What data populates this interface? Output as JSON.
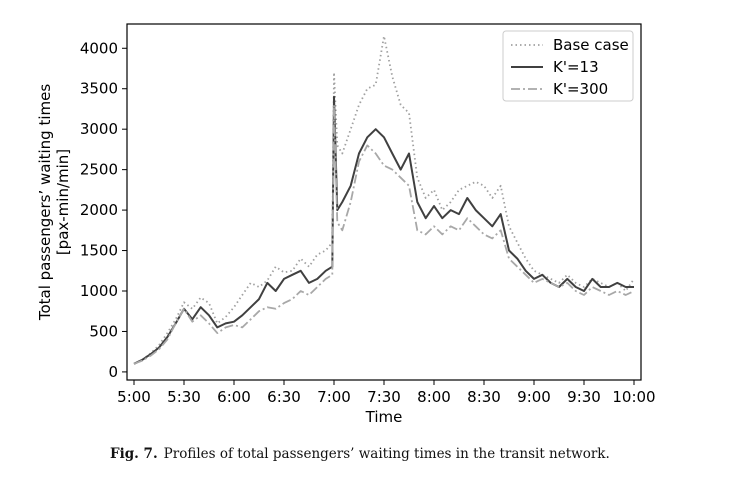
{
  "caption": {
    "label": "Fig. 7.",
    "text": "Profiles of total passengers’ waiting times in the transit network."
  },
  "chart_data": {
    "type": "line",
    "title": "",
    "xlabel": "Time",
    "ylabel": "Total passengers’ waiting times\n[pax-min/min]",
    "ylabel_lines": [
      "Total passengers’ waiting times",
      "[pax-min/min]"
    ],
    "x_unit": "minutes after 5:00",
    "xlim": [
      "5:00",
      "10:00"
    ],
    "ylim": [
      -100,
      4300
    ],
    "x_ticks": [
      "5:00",
      "5:30",
      "6:00",
      "6:30",
      "7:00",
      "7:30",
      "8:00",
      "8:30",
      "9:00",
      "9:30",
      "10:00"
    ],
    "y_ticks": [
      0,
      500,
      1000,
      1500,
      2000,
      2500,
      3000,
      3500,
      4000
    ],
    "legend_position": "top-right",
    "grid": false,
    "x": [
      "5:00",
      "5:05",
      "5:10",
      "5:15",
      "5:20",
      "5:25",
      "5:30",
      "5:35",
      "5:40",
      "5:45",
      "5:50",
      "5:55",
      "6:00",
      "6:05",
      "6:10",
      "6:15",
      "6:20",
      "6:25",
      "6:30",
      "6:35",
      "6:40",
      "6:45",
      "6:50",
      "6:55",
      "6:59",
      "7:00",
      "7:02",
      "7:05",
      "7:10",
      "7:15",
      "7:20",
      "7:25",
      "7:30",
      "7:35",
      "7:40",
      "7:45",
      "7:50",
      "7:55",
      "8:00",
      "8:05",
      "8:10",
      "8:15",
      "8:20",
      "8:25",
      "8:30",
      "8:35",
      "8:40",
      "8:45",
      "8:50",
      "8:55",
      "9:00",
      "9:05",
      "9:10",
      "9:15",
      "9:20",
      "9:25",
      "9:30",
      "9:35",
      "9:40",
      "9:45",
      "9:50",
      "9:55",
      "10:00"
    ],
    "series": [
      {
        "name": "Base case",
        "color": "#a0a0a0",
        "style": "dotted",
        "values": [
          100,
          150,
          230,
          330,
          480,
          650,
          860,
          780,
          920,
          850,
          600,
          680,
          800,
          950,
          1100,
          1050,
          1130,
          1300,
          1230,
          1250,
          1400,
          1300,
          1450,
          1500,
          1600,
          3700,
          2800,
          2700,
          3000,
          3300,
          3500,
          3550,
          4150,
          3650,
          3300,
          3200,
          2400,
          2150,
          2250,
          2000,
          2100,
          2250,
          2300,
          2350,
          2300,
          2150,
          2300,
          1800,
          1600,
          1400,
          1250,
          1200,
          1150,
          1100,
          1200,
          1100,
          1050,
          1150,
          1100,
          1050,
          1100,
          1000,
          1150
        ]
      },
      {
        "name": "K'=13",
        "color": "#404040",
        "style": "solid",
        "values": [
          100,
          150,
          220,
          300,
          430,
          600,
          780,
          650,
          800,
          700,
          550,
          600,
          620,
          700,
          800,
          900,
          1100,
          1000,
          1150,
          1200,
          1250,
          1100,
          1150,
          1250,
          1300,
          3400,
          2000,
          2100,
          2300,
          2700,
          2900,
          3000,
          2900,
          2700,
          2500,
          2700,
          2100,
          1900,
          2050,
          1900,
          2000,
          1950,
          2150,
          2000,
          1900,
          1800,
          1950,
          1500,
          1400,
          1250,
          1150,
          1200,
          1100,
          1050,
          1150,
          1050,
          1000,
          1150,
          1050,
          1050,
          1100,
          1050,
          1050
        ]
      },
      {
        "name": "K'=300",
        "color": "#a8a8a8",
        "style": "dashdot",
        "values": [
          100,
          140,
          200,
          280,
          400,
          600,
          780,
          620,
          700,
          600,
          480,
          550,
          580,
          550,
          650,
          750,
          800,
          780,
          850,
          900,
          1000,
          950,
          1050,
          1150,
          1200,
          3300,
          1850,
          1750,
          2100,
          2600,
          2800,
          2700,
          2550,
          2500,
          2400,
          2300,
          1750,
          1700,
          1800,
          1700,
          1800,
          1750,
          1900,
          1800,
          1700,
          1650,
          1750,
          1400,
          1300,
          1200,
          1100,
          1150,
          1100,
          1050,
          1100,
          1000,
          950,
          1050,
          1000,
          950,
          1000,
          950,
          1000
        ]
      }
    ]
  }
}
